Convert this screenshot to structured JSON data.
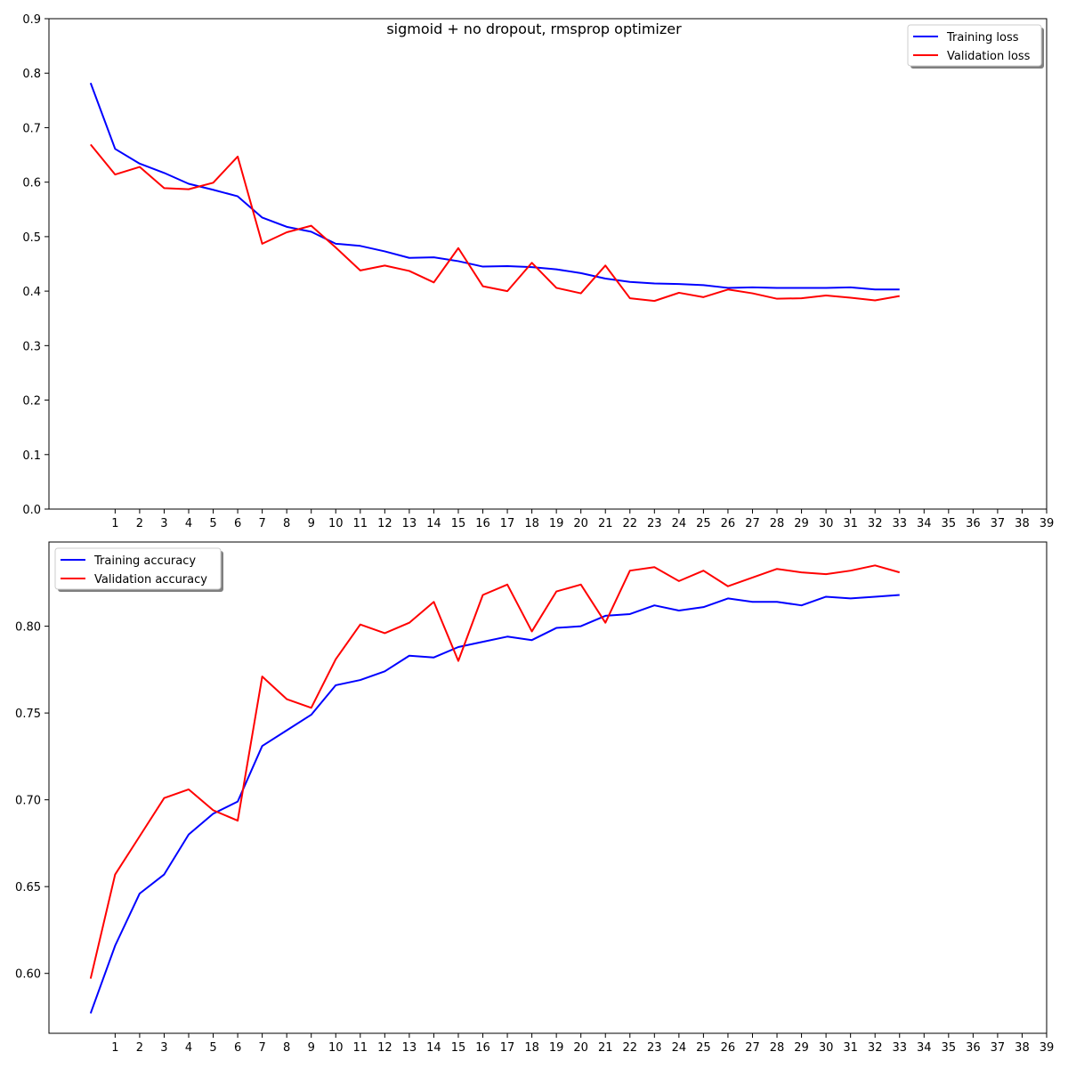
{
  "figure": {
    "title": "sigmoid + no dropout, rmsprop optimizer"
  },
  "colors": {
    "training": "#0000ff",
    "validation": "#ff0000",
    "axes": "#000000",
    "background": "#ffffff"
  },
  "chart_data": [
    {
      "type": "line",
      "title": "sigmoid + no dropout, rmsprop optimizer",
      "xlabel": "",
      "ylabel": "",
      "xlim": [
        -1.7,
        39
      ],
      "ylim": [
        0,
        0.9
      ],
      "x_ticks": [
        1,
        2,
        3,
        4,
        5,
        6,
        7,
        8,
        9,
        10,
        11,
        12,
        13,
        14,
        15,
        16,
        17,
        18,
        19,
        20,
        21,
        22,
        23,
        24,
        25,
        26,
        27,
        28,
        29,
        30,
        31,
        32,
        33,
        34,
        35,
        36,
        37,
        38,
        39
      ],
      "y_ticks": [
        "0.0",
        "0.1",
        "0.2",
        "0.3",
        "0.4",
        "0.5",
        "0.6",
        "0.7",
        "0.8",
        "0.9"
      ],
      "y_tick_values": [
        0,
        0.1,
        0.2,
        0.3,
        0.4,
        0.5,
        0.6,
        0.7,
        0.8,
        0.9
      ],
      "grid": false,
      "legend_position": "top-right",
      "x": [
        0,
        1,
        2,
        3,
        4,
        5,
        6,
        7,
        8,
        9,
        10,
        11,
        12,
        13,
        14,
        15,
        16,
        17,
        18,
        19,
        20,
        21,
        22,
        23,
        24,
        25,
        26,
        27,
        28,
        29,
        30,
        31,
        32,
        33
      ],
      "series": [
        {
          "name": "Training loss",
          "color": "#0000ff",
          "values": [
            0.782,
            0.661,
            0.634,
            0.617,
            0.597,
            0.586,
            0.574,
            0.535,
            0.518,
            0.509,
            0.487,
            0.483,
            0.473,
            0.461,
            0.462,
            0.455,
            0.445,
            0.446,
            0.444,
            0.44,
            0.433,
            0.423,
            0.417,
            0.414,
            0.413,
            0.411,
            0.406,
            0.407,
            0.406,
            0.406,
            0.406,
            0.407,
            0.403,
            0.403
          ]
        },
        {
          "name": "Validation loss",
          "color": "#ff0000",
          "values": [
            0.669,
            0.614,
            0.628,
            0.589,
            0.587,
            0.599,
            0.647,
            0.487,
            0.508,
            0.52,
            0.48,
            0.438,
            0.447,
            0.437,
            0.416,
            0.479,
            0.409,
            0.4,
            0.452,
            0.406,
            0.396,
            0.447,
            0.387,
            0.382,
            0.397,
            0.389,
            0.403,
            0.396,
            0.386,
            0.387,
            0.392,
            0.388,
            0.383,
            0.391
          ]
        }
      ]
    },
    {
      "type": "line",
      "title": "",
      "xlabel": "",
      "ylabel": "",
      "xlim": [
        -1.7,
        39
      ],
      "ylim": [
        0.5655,
        0.8485
      ],
      "x_ticks": [
        1,
        2,
        3,
        4,
        5,
        6,
        7,
        8,
        9,
        10,
        11,
        12,
        13,
        14,
        15,
        16,
        17,
        18,
        19,
        20,
        21,
        22,
        23,
        24,
        25,
        26,
        27,
        28,
        29,
        30,
        31,
        32,
        33,
        34,
        35,
        36,
        37,
        38,
        39
      ],
      "y_ticks": [
        "0.60",
        "0.65",
        "0.70",
        "0.75",
        "0.80"
      ],
      "y_tick_values": [
        0.6,
        0.65,
        0.7,
        0.75,
        0.8
      ],
      "grid": false,
      "legend_position": "top-left",
      "x": [
        0,
        1,
        2,
        3,
        4,
        5,
        6,
        7,
        8,
        9,
        10,
        11,
        12,
        13,
        14,
        15,
        16,
        17,
        18,
        19,
        20,
        21,
        22,
        23,
        24,
        25,
        26,
        27,
        28,
        29,
        30,
        31,
        32,
        33
      ],
      "series": [
        {
          "name": "Training accuracy",
          "color": "#0000ff",
          "values": [
            0.577,
            0.616,
            0.646,
            0.657,
            0.68,
            0.692,
            0.699,
            0.731,
            0.74,
            0.749,
            0.766,
            0.769,
            0.774,
            0.783,
            0.782,
            0.788,
            0.791,
            0.794,
            0.792,
            0.799,
            0.8,
            0.806,
            0.807,
            0.812,
            0.809,
            0.811,
            0.816,
            0.814,
            0.814,
            0.812,
            0.817,
            0.816,
            0.817,
            0.818
          ]
        },
        {
          "name": "Validation accuracy",
          "color": "#ff0000",
          "values": [
            0.597,
            0.657,
            0.679,
            0.701,
            0.706,
            0.694,
            0.688,
            0.771,
            0.758,
            0.753,
            0.781,
            0.801,
            0.796,
            0.802,
            0.814,
            0.78,
            0.818,
            0.824,
            0.797,
            0.82,
            0.824,
            0.802,
            0.832,
            0.834,
            0.826,
            0.832,
            0.823,
            0.828,
            0.833,
            0.831,
            0.83,
            0.832,
            0.835,
            0.831
          ]
        }
      ]
    }
  ]
}
